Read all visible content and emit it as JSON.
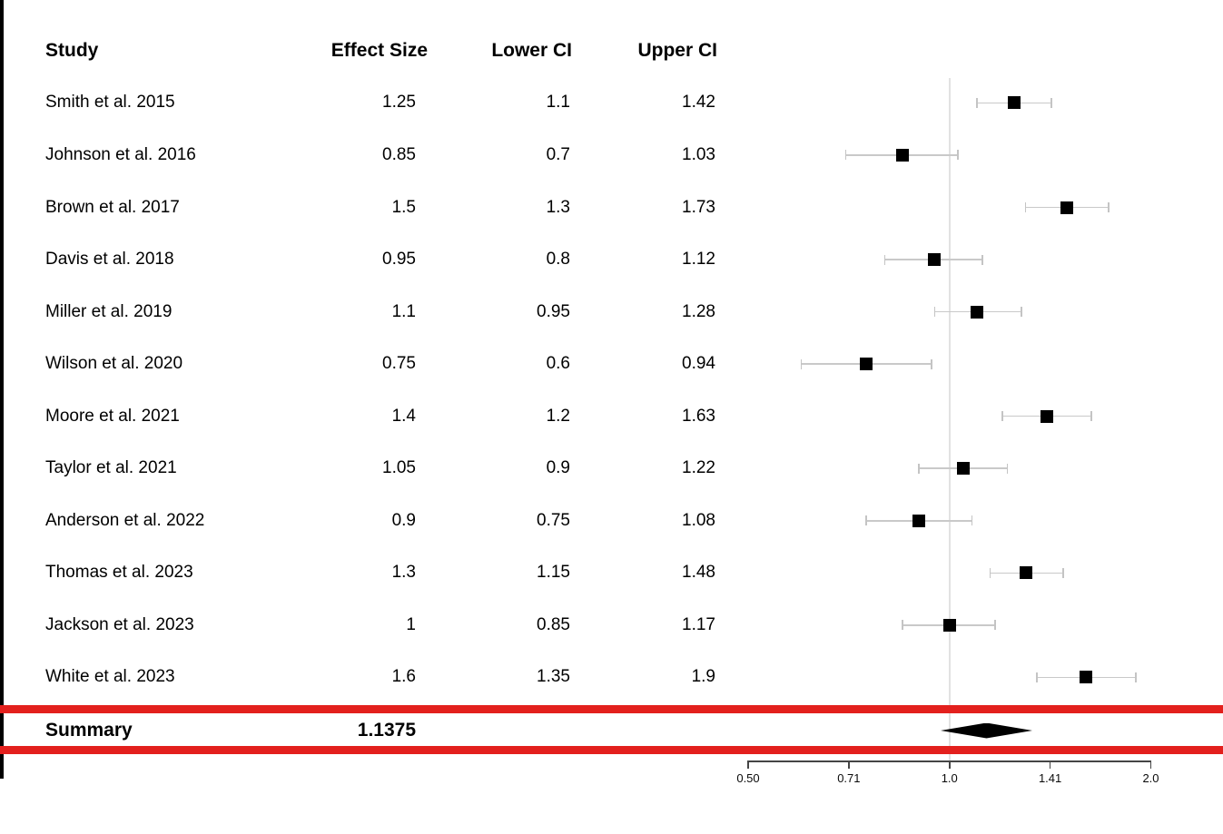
{
  "table": {
    "headers": {
      "study": "Study",
      "effect": "Effect Size",
      "lower": "Lower CI",
      "upper": "Upper CI"
    }
  },
  "chart_data": {
    "type": "forest",
    "x_scale": "log2",
    "xlim": [
      0.5,
      2.0
    ],
    "reference_line": 1.0,
    "grid": false,
    "axis_ticks": [
      {
        "value": 0.5,
        "label": "0.50"
      },
      {
        "value": 0.7071,
        "label": "0.71"
      },
      {
        "value": 1.0,
        "label": "1.0"
      },
      {
        "value": 1.4142,
        "label": "1.41"
      },
      {
        "value": 2.0,
        "label": "2.0"
      }
    ],
    "studies": [
      {
        "name": "Smith et al. 2015",
        "effect": 1.25,
        "lower": 1.1,
        "upper": 1.42
      },
      {
        "name": "Johnson et al. 2016",
        "effect": 0.85,
        "lower": 0.7,
        "upper": 1.03
      },
      {
        "name": "Brown et al. 2017",
        "effect": 1.5,
        "lower": 1.3,
        "upper": 1.73
      },
      {
        "name": "Davis et al. 2018",
        "effect": 0.95,
        "lower": 0.8,
        "upper": 1.12
      },
      {
        "name": "Miller et al. 2019",
        "effect": 1.1,
        "lower": 0.95,
        "upper": 1.28
      },
      {
        "name": "Wilson et al. 2020",
        "effect": 0.75,
        "lower": 0.6,
        "upper": 0.94
      },
      {
        "name": "Moore et al. 2021",
        "effect": 1.4,
        "lower": 1.2,
        "upper": 1.63
      },
      {
        "name": "Taylor et al. 2021",
        "effect": 1.05,
        "lower": 0.9,
        "upper": 1.22
      },
      {
        "name": "Anderson et al. 2022",
        "effect": 0.9,
        "lower": 0.75,
        "upper": 1.08
      },
      {
        "name": "Thomas et al. 2023",
        "effect": 1.3,
        "lower": 1.15,
        "upper": 1.48
      },
      {
        "name": "Jackson et al. 2023",
        "effect": 1,
        "lower": 0.85,
        "upper": 1.17
      },
      {
        "name": "White et al. 2023",
        "effect": 1.6,
        "lower": 1.35,
        "upper": 1.9
      }
    ],
    "summary": {
      "label": "Summary",
      "effect": 1.1375,
      "diamond_lower": 0.97,
      "diamond_upper": 1.33
    }
  },
  "colors": {
    "divider_red": "#e3201d",
    "marker_black": "#000000",
    "whisker_gray": "#c9c9c9",
    "reference_gray": "#e2e2e2",
    "axis_gray": "#454545"
  }
}
